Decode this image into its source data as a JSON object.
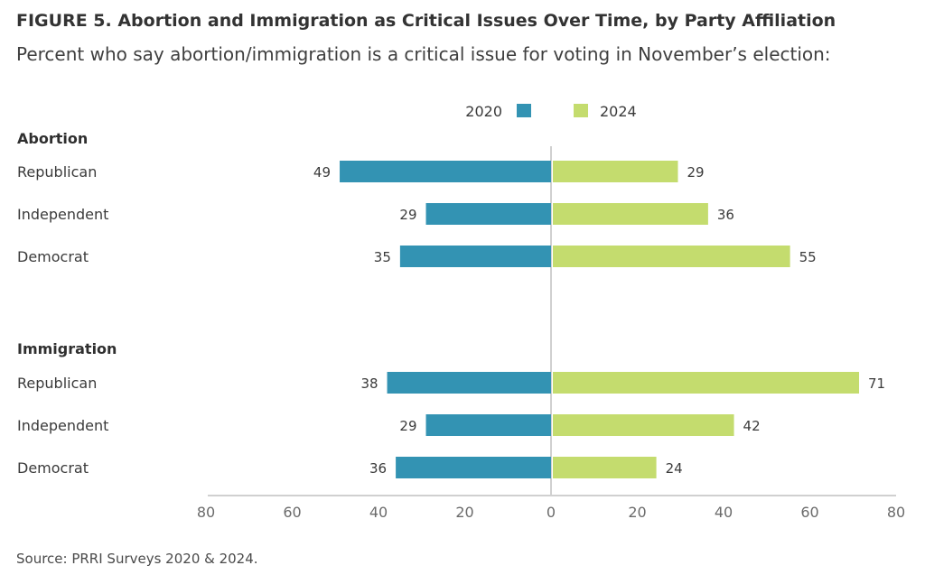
{
  "figure": {
    "title": "FIGURE 5.  Abortion and Immigration as Critical Issues Over Time, by Party Affiliation",
    "subtitle": "Percent who say abortion/immigration is a critical issue for voting in November’s election:",
    "source": "Source: PRRI Surveys 2020 & 2024."
  },
  "chart_data": {
    "type": "bar",
    "orientation": "horizontal-diverging",
    "series": [
      {
        "name": "2020",
        "color": "#3393b3",
        "direction": "left"
      },
      {
        "name": "2024",
        "color": "#c4dc6e",
        "direction": "right"
      }
    ],
    "groups": [
      {
        "name": "Abortion",
        "categories": [
          "Republican",
          "Independent",
          "Democrat"
        ],
        "values_2020": [
          49,
          29,
          35
        ],
        "values_2024": [
          29,
          36,
          55
        ]
      },
      {
        "name": "Immigration",
        "categories": [
          "Republican",
          "Independent",
          "Democrat"
        ],
        "values_2020": [
          38,
          29,
          36
        ],
        "values_2024": [
          71,
          42,
          24
        ]
      }
    ],
    "xlim": [
      -80,
      80
    ],
    "x_ticks": [
      "80",
      "60",
      "40",
      "20",
      "0",
      "20",
      "40",
      "60",
      "80"
    ],
    "legend_position": "top-center",
    "grid": false
  }
}
